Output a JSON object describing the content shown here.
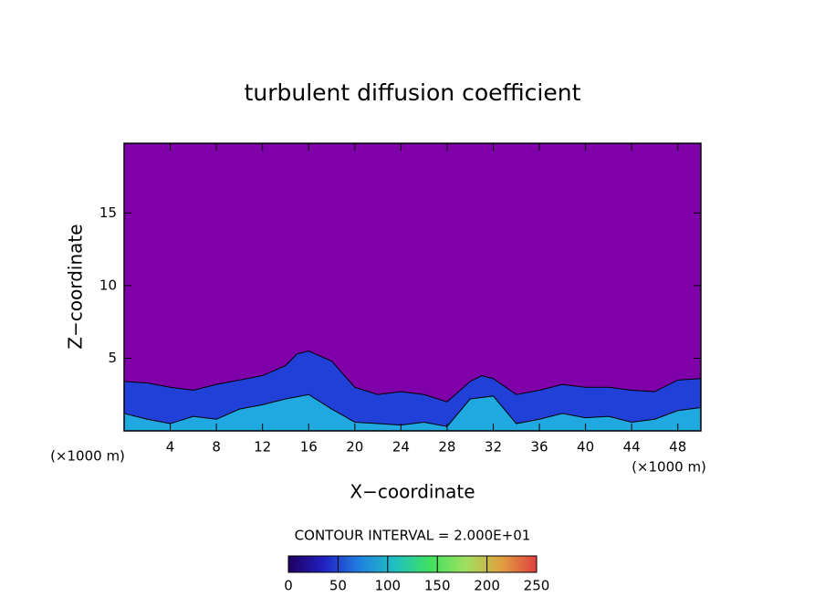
{
  "chart_data": {
    "type": "contour",
    "title": "turbulent diffusion coefficient",
    "xlabel": "X−coordinate",
    "ylabel": "Z−coordinate",
    "x_unit": "(×1000 m)",
    "y_unit": "(×1000 m)",
    "xlim": [
      0,
      50
    ],
    "ylim": [
      0,
      19.8
    ],
    "xticks": [
      4,
      8,
      12,
      16,
      20,
      24,
      28,
      32,
      36,
      40,
      44,
      48
    ],
    "yticks": [
      5,
      10,
      15
    ],
    "background_color": "#7f00a8",
    "layers": [
      {
        "color": "#2040d8",
        "x": [
          0,
          2,
          4,
          6,
          8,
          10,
          12,
          14,
          15,
          16,
          18,
          20,
          22,
          24,
          26,
          28,
          30,
          31,
          32,
          34,
          36,
          38,
          40,
          42,
          44,
          46,
          48,
          50
        ],
        "values": [
          3.4,
          3.3,
          3.0,
          2.8,
          3.2,
          3.5,
          3.8,
          4.5,
          5.3,
          5.5,
          4.8,
          3.0,
          2.5,
          2.7,
          2.5,
          2.0,
          3.4,
          3.8,
          3.6,
          2.5,
          2.8,
          3.2,
          3.0,
          3.0,
          2.8,
          2.7,
          3.5,
          3.6
        ]
      },
      {
        "color": "#20a8e0",
        "x": [
          0,
          2,
          4,
          6,
          8,
          10,
          12,
          14,
          16,
          18,
          20,
          22,
          24,
          26,
          28,
          30,
          32,
          34,
          36,
          38,
          40,
          42,
          44,
          46,
          48,
          50
        ],
        "values": [
          1.2,
          0.8,
          0.5,
          1.0,
          0.8,
          1.5,
          1.8,
          2.2,
          2.5,
          1.5,
          0.6,
          0.5,
          0.4,
          0.6,
          0.3,
          2.2,
          2.4,
          0.5,
          0.8,
          1.2,
          0.9,
          1.0,
          0.6,
          0.8,
          1.4,
          1.6
        ]
      }
    ],
    "contour_interval": "CONTOUR INTERVAL = 2.000E+01",
    "colorbar": {
      "lim": [
        0,
        250
      ],
      "ticks": [
        0,
        50,
        100,
        150,
        200,
        250
      ],
      "colors": [
        "#200060",
        "#2020c0",
        "#2080e0",
        "#20c0c0",
        "#40e060",
        "#a0e060",
        "#e0a040",
        "#e04040"
      ]
    }
  }
}
